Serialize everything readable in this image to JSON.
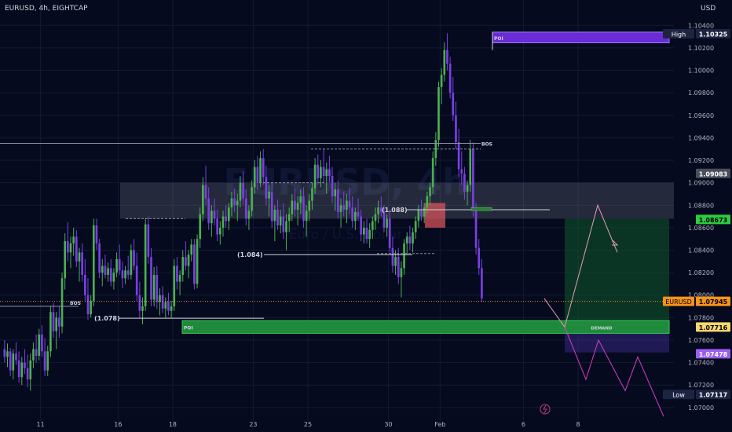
{
  "header": {
    "symbol_line": "EURUSD, 4h, EIGHTCAP",
    "currency": "USD"
  },
  "watermark": {
    "symbol": "EURUSD, 4h",
    "subtitle": "Euro / U.S. Dollar"
  },
  "colors": {
    "background": "#050a1f",
    "bull": "#4caf50",
    "bear": "#7b3fe4",
    "demand_zone": "#1f8a3b",
    "poi_top": "#6a2bd8",
    "grid": "#131a33",
    "price_orange": "#f7931a",
    "green_label": "#2ecc40",
    "purple_label": "#9d5cf0"
  },
  "chart_data": {
    "type": "candlestick",
    "interval": "4h",
    "ylim": [
      1.0688,
      1.105
    ],
    "y_ticks": [
      "1.10400",
      "1.10200",
      "1.10000",
      "1.09800",
      "1.09600",
      "1.09400",
      "1.09200",
      "1.09000",
      "1.08800",
      "1.08600",
      "1.08400",
      "1.08200",
      "1.08000",
      "1.07800",
      "1.07600",
      "1.07400",
      "1.07200",
      "1.07000"
    ],
    "x_tick_labels": [
      {
        "label": "11",
        "bar": 13
      },
      {
        "label": "16",
        "bar": 40
      },
      {
        "label": "18",
        "bar": 59
      },
      {
        "label": "23",
        "bar": 87
      },
      {
        "label": "25",
        "bar": 106
      },
      {
        "label": "30",
        "bar": 134
      },
      {
        "label": "Feb",
        "bar": 152
      },
      {
        "label": "6",
        "bar": 181
      },
      {
        "label": "8",
        "bar": 200
      }
    ],
    "price_labels": [
      {
        "name": "High",
        "value": "1.10325",
        "style": "tag"
      },
      {
        "name": "",
        "value": "1.09083",
        "style": "grey"
      },
      {
        "name": "",
        "value": "1.08673",
        "style": "green"
      },
      {
        "name": "EURUSD",
        "value": "1.07945",
        "style": "orange"
      },
      {
        "name": "",
        "value": "1.07716",
        "style": "yellow"
      },
      {
        "name": "",
        "value": "1.07478",
        "style": "purple"
      },
      {
        "name": "Low",
        "value": "1.07117",
        "style": "tag"
      }
    ],
    "annotations": {
      "bos_left": "BOS",
      "bos_top": "BOS",
      "poi_low": "POI",
      "poi_high": "POI",
      "demand": "DEMAND",
      "level_1078": "(1.078)",
      "level_1084": "(1.084)",
      "level_1088": "(1.088)"
    },
    "candles": [
      [
        1.0752,
        1.076,
        1.074,
        1.0745
      ],
      [
        1.0745,
        1.0757,
        1.0736,
        1.075
      ],
      [
        1.075,
        1.0753,
        1.0728,
        1.0733
      ],
      [
        1.0733,
        1.0752,
        1.0725,
        1.0748
      ],
      [
        1.0748,
        1.0758,
        1.0738,
        1.0742
      ],
      [
        1.0742,
        1.075,
        1.0722,
        1.0727
      ],
      [
        1.0727,
        1.0745,
        1.072,
        1.074
      ],
      [
        1.074,
        1.0752,
        1.073,
        1.0735
      ],
      [
        1.0735,
        1.0747,
        1.0718,
        1.0725
      ],
      [
        1.0725,
        1.0748,
        1.0715,
        1.0742
      ],
      [
        1.0742,
        1.0758,
        1.0735,
        1.0752
      ],
      [
        1.0752,
        1.0765,
        1.074,
        1.0746
      ],
      [
        1.0746,
        1.077,
        1.0742,
        1.0765
      ],
      [
        1.0765,
        1.0773,
        1.0745,
        1.075
      ],
      [
        1.075,
        1.0762,
        1.0728,
        1.0733
      ],
      [
        1.0733,
        1.0755,
        1.0728,
        1.075
      ],
      [
        1.075,
        1.079,
        1.0745,
        1.0785
      ],
      [
        1.0785,
        1.0793,
        1.0762,
        1.0768
      ],
      [
        1.0768,
        1.0785,
        1.0752,
        1.078
      ],
      [
        1.078,
        1.079,
        1.0762,
        1.0772
      ],
      [
        1.0772,
        1.082,
        1.0766,
        1.0815
      ],
      [
        1.0815,
        1.0855,
        1.0805,
        1.0848
      ],
      [
        1.0848,
        1.0865,
        1.083,
        1.0838
      ],
      [
        1.0838,
        1.0852,
        1.0824,
        1.0846
      ],
      [
        1.0846,
        1.086,
        1.0835,
        1.0852
      ],
      [
        1.0852,
        1.0858,
        1.0825,
        1.083
      ],
      [
        1.083,
        1.0842,
        1.0812,
        1.0838
      ],
      [
        1.0838,
        1.0846,
        1.0812,
        1.0818
      ],
      [
        1.0818,
        1.0832,
        1.0795,
        1.08
      ],
      [
        1.08,
        1.0815,
        1.0778,
        1.0783
      ],
      [
        1.0783,
        1.08,
        1.078,
        1.0795
      ],
      [
        1.0795,
        1.0868,
        1.079,
        1.0862
      ],
      [
        1.0862,
        1.0868,
        1.084,
        1.0846
      ],
      [
        1.0846,
        1.085,
        1.0815,
        1.082
      ],
      [
        1.082,
        1.0832,
        1.0808,
        1.0826
      ],
      [
        1.0826,
        1.0836,
        1.0815,
        1.0818
      ],
      [
        1.0818,
        1.0829,
        1.0812,
        1.0824
      ],
      [
        1.0824,
        1.0832,
        1.0808,
        1.0812
      ],
      [
        1.0812,
        1.0824,
        1.0805,
        1.082
      ],
      [
        1.082,
        1.0838,
        1.0816,
        1.0832
      ],
      [
        1.0832,
        1.0845,
        1.0818,
        1.0822
      ],
      [
        1.0822,
        1.083,
        1.0806,
        1.0815
      ],
      [
        1.0815,
        1.0826,
        1.081,
        1.0822
      ],
      [
        1.0822,
        1.0835,
        1.0814,
        1.0818
      ],
      [
        1.0818,
        1.0845,
        1.0814,
        1.084
      ],
      [
        1.084,
        1.085,
        1.0822,
        1.0826
      ],
      [
        1.0826,
        1.0838,
        1.0795,
        1.08
      ],
      [
        1.08,
        1.0812,
        1.078,
        1.0786
      ],
      [
        1.0786,
        1.0798,
        1.0774,
        1.079
      ],
      [
        1.079,
        1.0868,
        1.0786,
        1.0863
      ],
      [
        1.0863,
        1.087,
        1.0828,
        1.0834
      ],
      [
        1.0834,
        1.0842,
        1.079,
        1.0796
      ],
      [
        1.0796,
        1.0825,
        1.079,
        1.0818
      ],
      [
        1.0818,
        1.0826,
        1.0788,
        1.0794
      ],
      [
        1.0794,
        1.0806,
        1.0782,
        1.08
      ],
      [
        1.08,
        1.0808,
        1.0784,
        1.0788
      ],
      [
        1.0788,
        1.0798,
        1.078,
        1.0794
      ],
      [
        1.0794,
        1.0802,
        1.0782,
        1.0786
      ],
      [
        1.0786,
        1.0795,
        1.078,
        1.079
      ],
      [
        1.079,
        1.0832,
        1.0786,
        1.0826
      ],
      [
        1.0826,
        1.0834,
        1.0805,
        1.0812
      ],
      [
        1.0812,
        1.0822,
        1.08,
        1.0818
      ],
      [
        1.0818,
        1.084,
        1.0812,
        1.0834
      ],
      [
        1.0834,
        1.0848,
        1.0822,
        1.0826
      ],
      [
        1.0826,
        1.084,
        1.0815,
        1.0836
      ],
      [
        1.0836,
        1.085,
        1.083,
        1.0845
      ],
      [
        1.0845,
        1.085,
        1.0805,
        1.081
      ],
      [
        1.081,
        1.0854,
        1.0806,
        1.085
      ],
      [
        1.085,
        1.0878,
        1.0842,
        1.0872
      ],
      [
        1.0872,
        1.0905,
        1.0866,
        1.0898
      ],
      [
        1.0898,
        1.0915,
        1.088,
        1.0886
      ],
      [
        1.0886,
        1.0896,
        1.0858,
        1.0864
      ],
      [
        1.0864,
        1.088,
        1.0852,
        1.0875
      ],
      [
        1.0875,
        1.0886,
        1.0862,
        1.0868
      ],
      [
        1.0868,
        1.0876,
        1.0848,
        1.0854
      ],
      [
        1.0854,
        1.0866,
        1.0845,
        1.086
      ],
      [
        1.086,
        1.0875,
        1.0852,
        1.087
      ],
      [
        1.087,
        1.088,
        1.086,
        1.0866
      ],
      [
        1.0866,
        1.0882,
        1.0858,
        1.0878
      ],
      [
        1.0878,
        1.0892,
        1.087,
        1.0886
      ],
      [
        1.0886,
        1.0895,
        1.0874,
        1.088
      ],
      [
        1.088,
        1.089,
        1.0866,
        1.0884
      ],
      [
        1.0884,
        1.0906,
        1.0878,
        1.09
      ],
      [
        1.09,
        1.091,
        1.088,
        1.0886
      ],
      [
        1.0886,
        1.0894,
        1.0862,
        1.0868
      ],
      [
        1.0868,
        1.088,
        1.0858,
        1.0875
      ],
      [
        1.0875,
        1.0902,
        1.087,
        1.0896
      ],
      [
        1.0896,
        1.092,
        1.089,
        1.0914
      ],
      [
        1.0914,
        1.0924,
        1.0894,
        1.09
      ],
      [
        1.09,
        1.0928,
        1.0896,
        1.0922
      ],
      [
        1.0922,
        1.093,
        1.0898,
        1.0905
      ],
      [
        1.0905,
        1.0915,
        1.088,
        1.0886
      ],
      [
        1.0886,
        1.0898,
        1.087,
        1.0892
      ],
      [
        1.0892,
        1.09,
        1.086,
        1.0866
      ],
      [
        1.0866,
        1.088,
        1.0848,
        1.0876
      ],
      [
        1.0876,
        1.0885,
        1.0858,
        1.0862
      ],
      [
        1.0862,
        1.0876,
        1.0855,
        1.087
      ],
      [
        1.087,
        1.0882,
        1.085,
        1.0856
      ],
      [
        1.0856,
        1.0872,
        1.084,
        1.0866
      ],
      [
        1.0866,
        1.0878,
        1.0856,
        1.0872
      ],
      [
        1.0872,
        1.089,
        1.0866,
        1.0884
      ],
      [
        1.0884,
        1.0895,
        1.087,
        1.0876
      ],
      [
        1.0876,
        1.0888,
        1.0862,
        1.0882
      ],
      [
        1.0882,
        1.0894,
        1.0872,
        1.0888
      ],
      [
        1.0888,
        1.0896,
        1.086,
        1.0866
      ],
      [
        1.0866,
        1.088,
        1.0852,
        1.0875
      ],
      [
        1.0875,
        1.089,
        1.0866,
        1.0884
      ],
      [
        1.0884,
        1.09,
        1.0876,
        1.0895
      ],
      [
        1.0895,
        1.0922,
        1.089,
        1.0916
      ],
      [
        1.0916,
        1.0925,
        1.0898,
        1.0904
      ],
      [
        1.0904,
        1.092,
        1.0896,
        1.0914
      ],
      [
        1.0914,
        1.093,
        1.09,
        1.0906
      ],
      [
        1.0906,
        1.0918,
        1.089,
        1.0912
      ],
      [
        1.0912,
        1.0924,
        1.09,
        1.0906
      ],
      [
        1.0906,
        1.0914,
        1.0882,
        1.0888
      ],
      [
        1.0888,
        1.09,
        1.0875,
        1.0894
      ],
      [
        1.0894,
        1.0902,
        1.0868,
        1.0874
      ],
      [
        1.0874,
        1.0886,
        1.086,
        1.088
      ],
      [
        1.088,
        1.0892,
        1.087,
        1.0876
      ],
      [
        1.0876,
        1.089,
        1.0864,
        1.0884
      ],
      [
        1.0884,
        1.0896,
        1.0872,
        1.0878
      ],
      [
        1.0878,
        1.0888,
        1.086,
        1.0866
      ],
      [
        1.0866,
        1.0878,
        1.0858,
        1.0874
      ],
      [
        1.0874,
        1.0886,
        1.0866,
        1.087
      ],
      [
        1.087,
        1.0876,
        1.0848,
        1.0854
      ],
      [
        1.0854,
        1.0866,
        1.0846,
        1.086
      ],
      [
        1.086,
        1.0868,
        1.0846,
        1.085
      ],
      [
        1.085,
        1.0864,
        1.0842,
        1.0858
      ],
      [
        1.0858,
        1.087,
        1.085,
        1.0866
      ],
      [
        1.0866,
        1.0878,
        1.0858,
        1.0872
      ],
      [
        1.0872,
        1.0884,
        1.0864,
        1.0878
      ],
      [
        1.0878,
        1.0888,
        1.087,
        1.0874
      ],
      [
        1.0874,
        1.088,
        1.0856,
        1.086
      ],
      [
        1.086,
        1.0872,
        1.0852,
        1.0868
      ],
      [
        1.0868,
        1.0876,
        1.0838,
        1.0842
      ],
      [
        1.0842,
        1.0852,
        1.082,
        1.0826
      ],
      [
        1.0826,
        1.084,
        1.0818,
        1.0834
      ],
      [
        1.0834,
        1.0842,
        1.081,
        1.0816
      ],
      [
        1.0816,
        1.083,
        1.0798,
        1.0824
      ],
      [
        1.0824,
        1.085,
        1.0818,
        1.0846
      ],
      [
        1.0846,
        1.0856,
        1.0836,
        1.0852
      ],
      [
        1.0852,
        1.0862,
        1.084,
        1.0846
      ],
      [
        1.0846,
        1.086,
        1.0838,
        1.0856
      ],
      [
        1.0856,
        1.087,
        1.085,
        1.0866
      ],
      [
        1.0866,
        1.088,
        1.086,
        1.0876
      ],
      [
        1.0876,
        1.0885,
        1.0866,
        1.087
      ],
      [
        1.087,
        1.0882,
        1.0864,
        1.0878
      ],
      [
        1.0878,
        1.0892,
        1.0872,
        1.0888
      ],
      [
        1.0888,
        1.09,
        1.088,
        1.0896
      ],
      [
        1.0896,
        1.0928,
        1.089,
        1.0922
      ],
      [
        1.0922,
        1.0945,
        1.0915,
        1.0938
      ],
      [
        1.0938,
        1.099,
        1.0932,
        1.0985
      ],
      [
        1.0985,
        1.1002,
        1.097,
        1.0996
      ],
      [
        1.0996,
        1.1025,
        1.099,
        1.1018
      ],
      [
        1.1018,
        1.1033,
        1.1,
        1.1006
      ],
      [
        1.1006,
        1.1012,
        1.0975,
        1.098
      ],
      [
        1.098,
        1.0994,
        1.0955,
        1.096
      ],
      [
        1.096,
        1.0972,
        1.093,
        1.0936
      ],
      [
        1.0936,
        1.0948,
        1.0905,
        1.0912
      ],
      [
        1.0912,
        1.0928,
        1.0898,
        1.0908
      ],
      [
        1.0908,
        1.0914,
        1.0885,
        1.0892
      ],
      [
        1.0892,
        1.0902,
        1.088,
        1.0898
      ],
      [
        1.0898,
        1.0938,
        1.0892,
        1.093
      ],
      [
        1.093,
        1.0936,
        1.087,
        1.0876
      ],
      [
        1.0876,
        1.0882,
        1.0836,
        1.0842
      ],
      [
        1.0842,
        1.085,
        1.0818,
        1.0824
      ],
      [
        1.0824,
        1.0832,
        1.0794,
        1.0797
      ]
    ]
  }
}
